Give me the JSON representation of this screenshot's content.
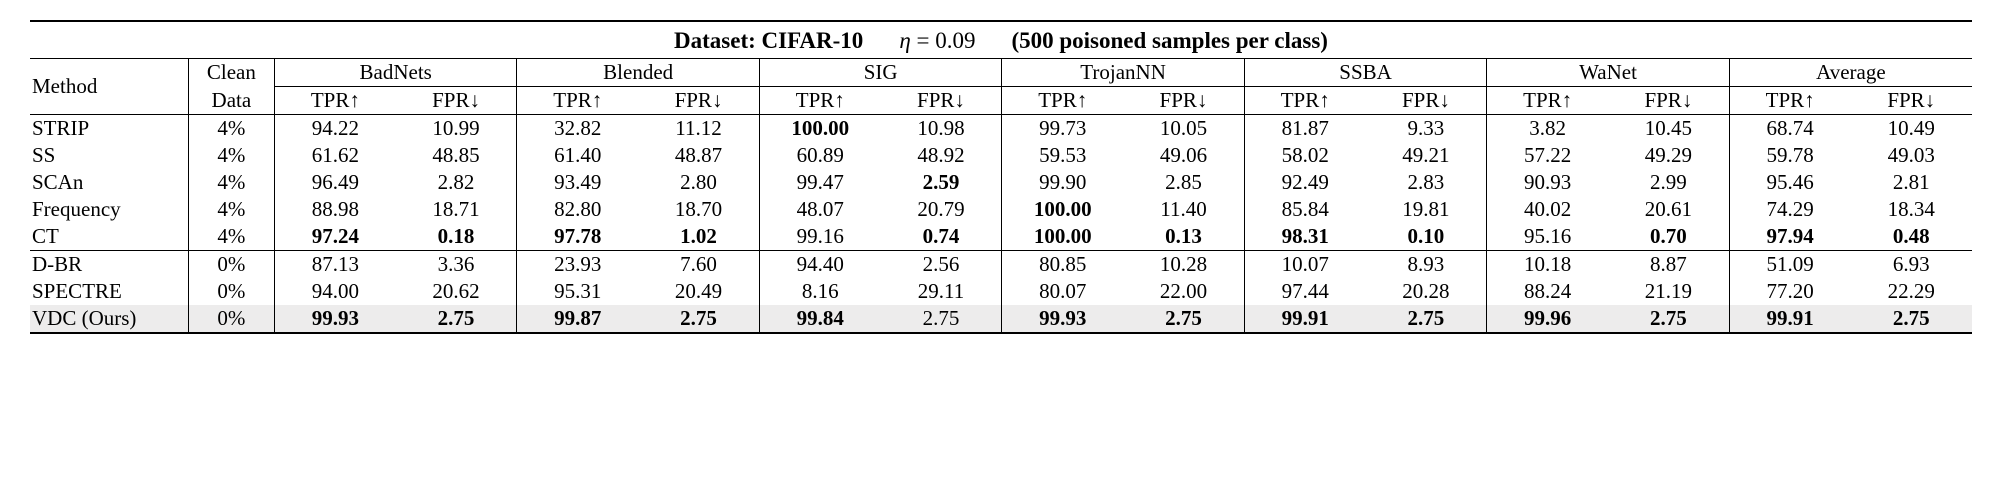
{
  "caption": {
    "prefix": "Dataset: CIFAR-10",
    "eta_lhs": "η",
    "eta_rhs": " = 0.09",
    "suffix": "(500 poisoned samples per class)"
  },
  "header": {
    "method": "Method",
    "clean1": "Clean",
    "clean2": "Data",
    "groups": [
      "BadNets",
      "Blended",
      "SIG",
      "TrojanNN",
      "SSBA",
      "WaNet",
      "Average"
    ],
    "sub_tpr": "TPR↑",
    "sub_fpr": "FPR↓"
  },
  "section1": [
    {
      "m": "STRIP",
      "cd": "4%",
      "v": [
        [
          "94.22",
          0
        ],
        [
          "10.99",
          0
        ],
        [
          "32.82",
          0
        ],
        [
          "11.12",
          0
        ],
        [
          "100.00",
          1
        ],
        [
          "10.98",
          0
        ],
        [
          "99.73",
          0
        ],
        [
          "10.05",
          0
        ],
        [
          "81.87",
          0
        ],
        [
          "9.33",
          0
        ],
        [
          "3.82",
          0
        ],
        [
          "10.45",
          0
        ],
        [
          "68.74",
          0
        ],
        [
          "10.49",
          0
        ]
      ]
    },
    {
      "m": "SS",
      "cd": "4%",
      "v": [
        [
          "61.62",
          0
        ],
        [
          "48.85",
          0
        ],
        [
          "61.40",
          0
        ],
        [
          "48.87",
          0
        ],
        [
          "60.89",
          0
        ],
        [
          "48.92",
          0
        ],
        [
          "59.53",
          0
        ],
        [
          "49.06",
          0
        ],
        [
          "58.02",
          0
        ],
        [
          "49.21",
          0
        ],
        [
          "57.22",
          0
        ],
        [
          "49.29",
          0
        ],
        [
          "59.78",
          0
        ],
        [
          "49.03",
          0
        ]
      ]
    },
    {
      "m": "SCAn",
      "cd": "4%",
      "v": [
        [
          "96.49",
          0
        ],
        [
          "2.82",
          0
        ],
        [
          "93.49",
          0
        ],
        [
          "2.80",
          0
        ],
        [
          "99.47",
          0
        ],
        [
          "2.59",
          1
        ],
        [
          "99.90",
          0
        ],
        [
          "2.85",
          0
        ],
        [
          "92.49",
          0
        ],
        [
          "2.83",
          0
        ],
        [
          "90.93",
          0
        ],
        [
          "2.99",
          0
        ],
        [
          "95.46",
          0
        ],
        [
          "2.81",
          0
        ]
      ]
    },
    {
      "m": "Frequency",
      "cd": "4%",
      "v": [
        [
          "88.98",
          0
        ],
        [
          "18.71",
          0
        ],
        [
          "82.80",
          0
        ],
        [
          "18.70",
          0
        ],
        [
          "48.07",
          0
        ],
        [
          "20.79",
          0
        ],
        [
          "100.00",
          1
        ],
        [
          "11.40",
          0
        ],
        [
          "85.84",
          0
        ],
        [
          "19.81",
          0
        ],
        [
          "40.02",
          0
        ],
        [
          "20.61",
          0
        ],
        [
          "74.29",
          0
        ],
        [
          "18.34",
          0
        ]
      ]
    },
    {
      "m": "CT",
      "cd": "4%",
      "v": [
        [
          "97.24",
          1
        ],
        [
          "0.18",
          1
        ],
        [
          "97.78",
          1
        ],
        [
          "1.02",
          1
        ],
        [
          "99.16",
          0
        ],
        [
          "0.74",
          1
        ],
        [
          "100.00",
          1
        ],
        [
          "0.13",
          1
        ],
        [
          "98.31",
          1
        ],
        [
          "0.10",
          1
        ],
        [
          "95.16",
          0
        ],
        [
          "0.70",
          1
        ],
        [
          "97.94",
          1
        ],
        [
          "0.48",
          1
        ]
      ]
    }
  ],
  "section2": [
    {
      "m": "D-BR",
      "cd": "0%",
      "v": [
        [
          "87.13",
          0
        ],
        [
          "3.36",
          0
        ],
        [
          "23.93",
          0
        ],
        [
          "7.60",
          0
        ],
        [
          "94.40",
          0
        ],
        [
          "2.56",
          0
        ],
        [
          "80.85",
          0
        ],
        [
          "10.28",
          0
        ],
        [
          "10.07",
          0
        ],
        [
          "8.93",
          0
        ],
        [
          "10.18",
          0
        ],
        [
          "8.87",
          0
        ],
        [
          "51.09",
          0
        ],
        [
          "6.93",
          0
        ]
      ]
    },
    {
      "m": "SPECTRE",
      "cd": "0%",
      "v": [
        [
          "94.00",
          0
        ],
        [
          "20.62",
          0
        ],
        [
          "95.31",
          0
        ],
        [
          "20.49",
          0
        ],
        [
          "8.16",
          0
        ],
        [
          "29.11",
          0
        ],
        [
          "80.07",
          0
        ],
        [
          "22.00",
          0
        ],
        [
          "97.44",
          0
        ],
        [
          "20.28",
          0
        ],
        [
          "88.24",
          0
        ],
        [
          "21.19",
          0
        ],
        [
          "77.20",
          0
        ],
        [
          "22.29",
          0
        ]
      ]
    },
    {
      "m": "VDC (Ours)",
      "cd": "0%",
      "hl": true,
      "v": [
        [
          "99.93",
          1
        ],
        [
          "2.75",
          1
        ],
        [
          "99.87",
          1
        ],
        [
          "2.75",
          1
        ],
        [
          "99.84",
          1
        ],
        [
          "2.75",
          0
        ],
        [
          "99.93",
          1
        ],
        [
          "2.75",
          1
        ],
        [
          "99.91",
          1
        ],
        [
          "2.75",
          1
        ],
        [
          "99.96",
          1
        ],
        [
          "2.75",
          1
        ],
        [
          "99.91",
          1
        ],
        [
          "2.75",
          1
        ]
      ]
    }
  ],
  "style": {
    "col_widths": {
      "method": 158,
      "clean": 86,
      "val": 121
    },
    "highlight_bg": "#edecec",
    "font_size_body": 21,
    "font_size_caption": 23
  }
}
